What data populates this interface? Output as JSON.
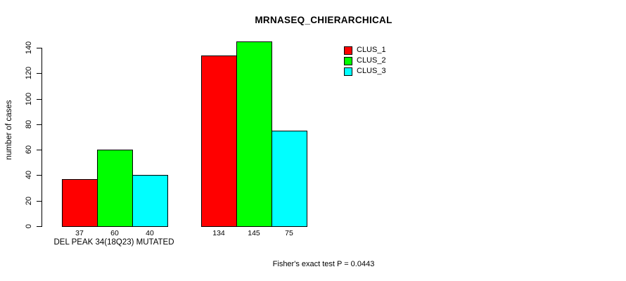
{
  "chart_data": {
    "type": "bar",
    "title": "MRNASEQ_CHIERARCHICAL",
    "ylabel": "number of cases",
    "xlabel": "DEL PEAK 34(18Q23) MUTATED",
    "footer": "Fisher's exact test P = 0.0443",
    "categories": [
      "DEL PEAK 34(18Q23) MUTATED",
      ""
    ],
    "series": [
      {
        "name": "CLUS_1",
        "color": "#ff0000",
        "values": [
          37,
          134
        ]
      },
      {
        "name": "CLUS_2",
        "color": "#00ff00",
        "values": [
          60,
          145
        ]
      },
      {
        "name": "CLUS_3",
        "color": "#00ffff",
        "values": [
          40,
          75
        ]
      }
    ],
    "bar_value_labels": [
      [
        "37",
        "60",
        "40"
      ],
      [
        "134",
        "145",
        "75"
      ]
    ],
    "yticks": [
      0,
      20,
      40,
      60,
      80,
      100,
      120,
      140
    ],
    "ylim": [
      0,
      145
    ],
    "grid": false,
    "legend_position": "top-right",
    "axis_color": "#000000",
    "background_color": "#ffffff"
  }
}
